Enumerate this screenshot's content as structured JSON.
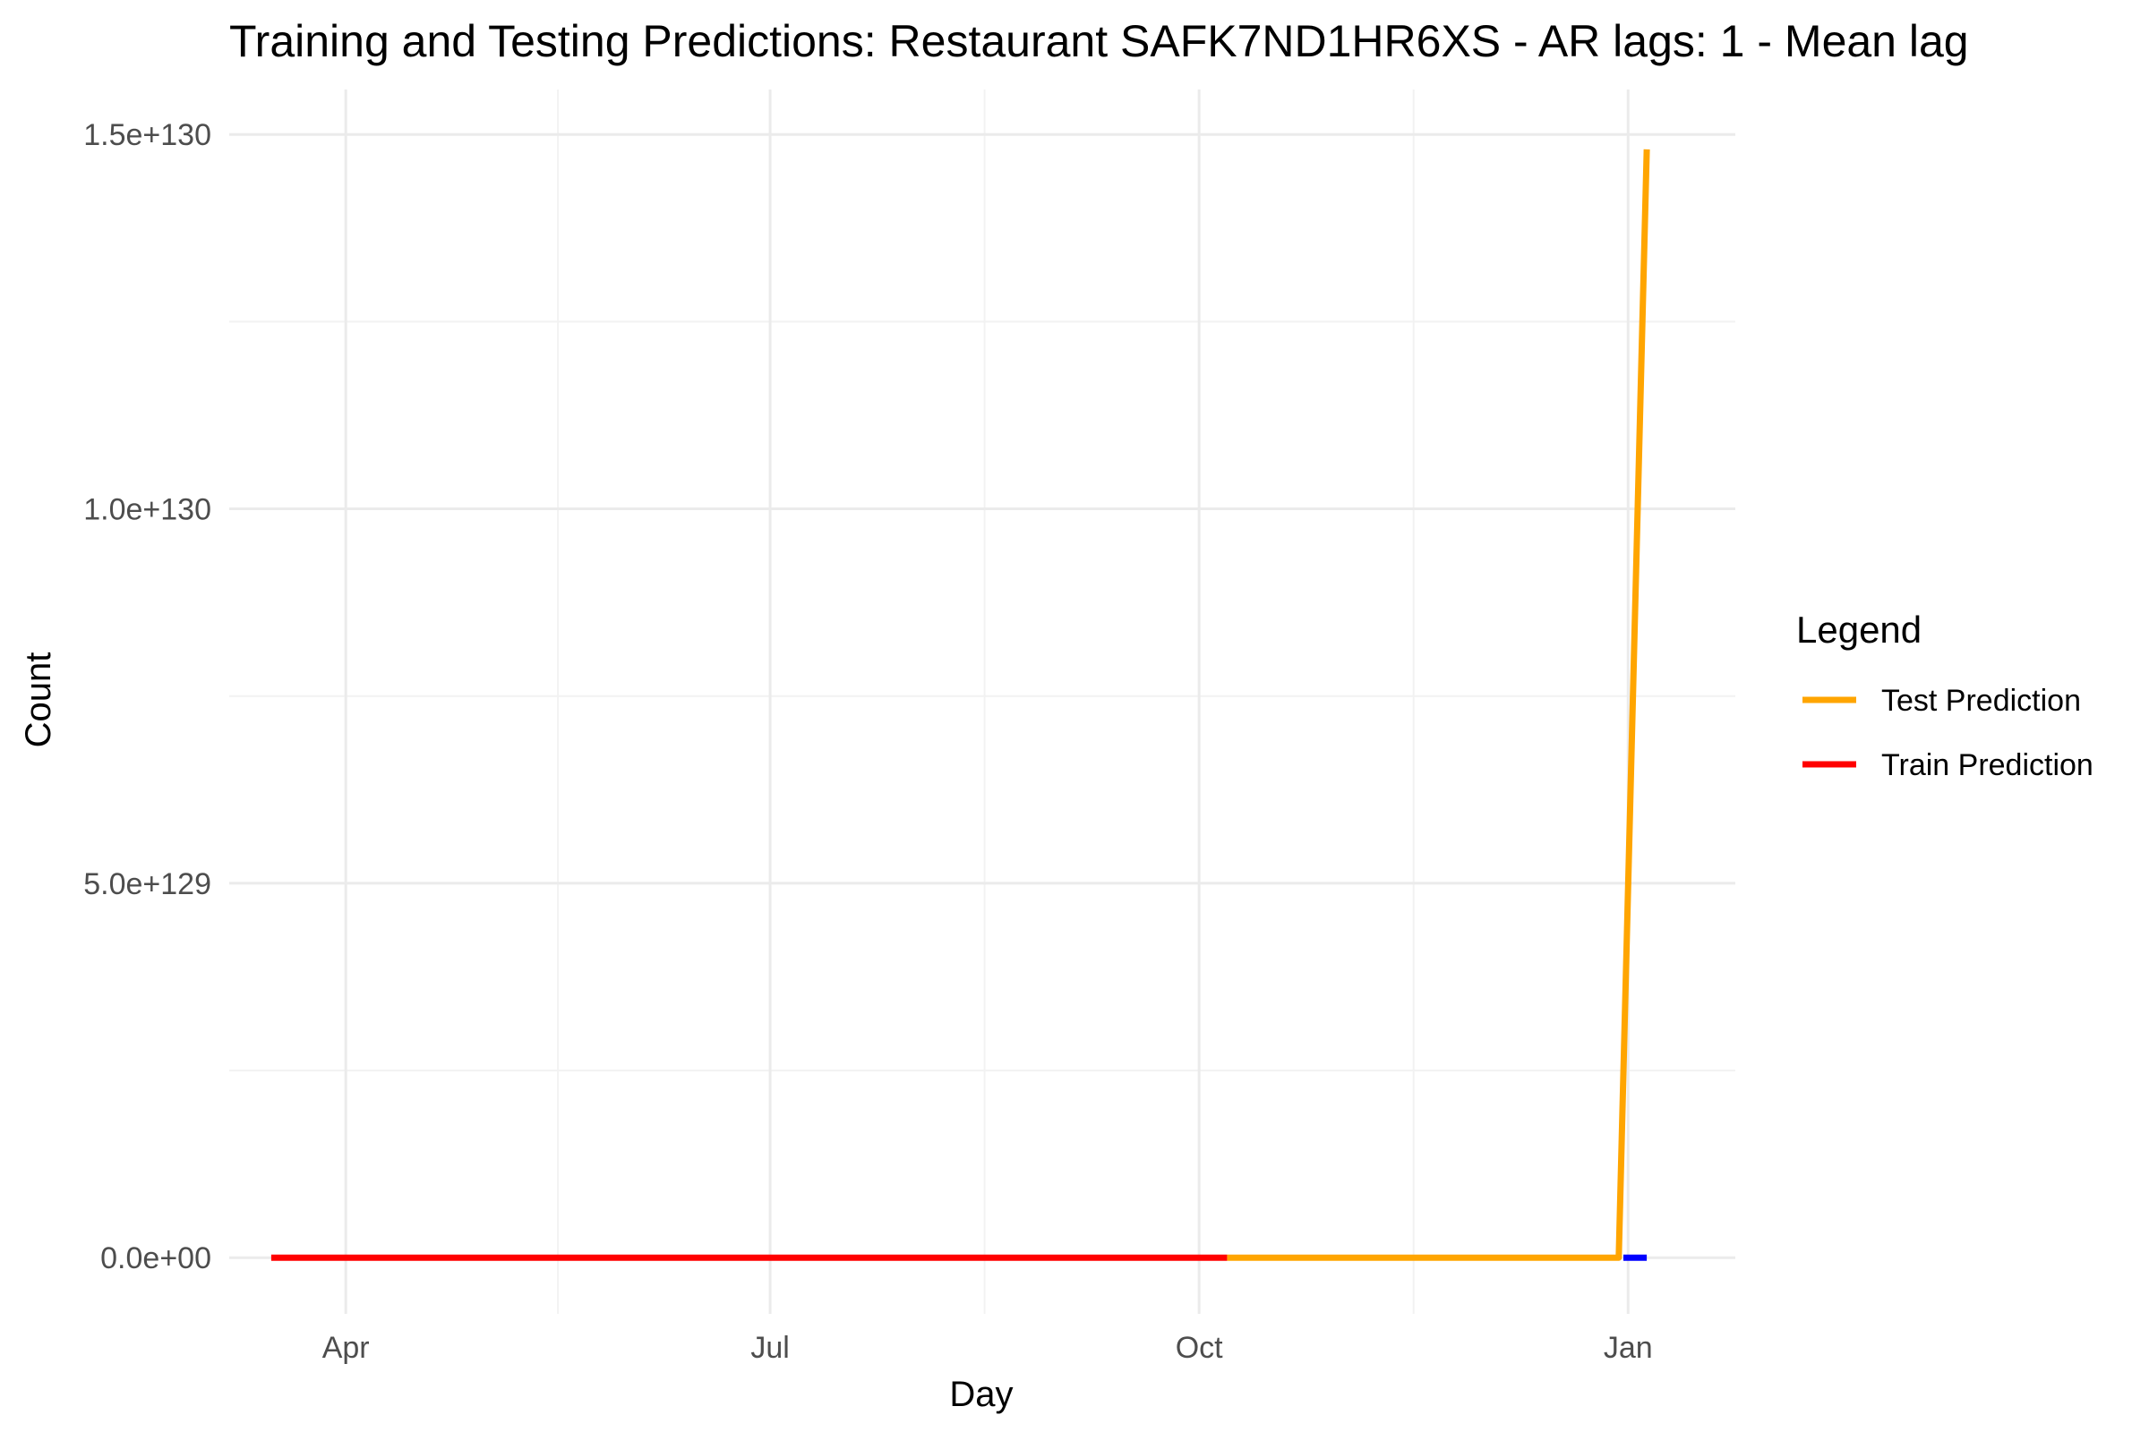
{
  "chart_data": {
    "type": "line",
    "title": "Training and Testing Predictions: Restaurant SAFK7ND1HR6XS - AR lags: 1 - Mean lag",
    "xlabel": "Day",
    "ylabel": "Count",
    "x_ticks": [
      {
        "label": "Apr",
        "date": "2016-04-01"
      },
      {
        "label": "Jul",
        "date": "2016-07-01"
      },
      {
        "label": "Oct",
        "date": "2016-10-01"
      },
      {
        "label": "Jan",
        "date": "2017-01-01"
      }
    ],
    "y_ticks": [
      {
        "label": "0.0e+00",
        "value": 0
      },
      {
        "label": "5.0e+129",
        "value": 5e+129
      },
      {
        "label": "1.0e+130",
        "value": 1e+130
      },
      {
        "label": "1.5e+130",
        "value": 1.5e+130
      }
    ],
    "xlim": [
      "2016-03-07",
      "2017-01-24"
    ],
    "ylim": [
      -7.5e+128,
      1.56e+130
    ],
    "grid": true,
    "legend": {
      "title": "Legend",
      "position": "right"
    },
    "series": [
      {
        "name": "Test Prediction",
        "color": "#FFA500",
        "in_legend": true,
        "points": [
          {
            "x": "2016-10-07",
            "y": 0
          },
          {
            "x": "2016-12-30",
            "y": 0
          },
          {
            "x": "2017-01-05",
            "y": 1.48e+130
          }
        ]
      },
      {
        "name": "Train Prediction",
        "color": "#FF0000",
        "in_legend": true,
        "points": [
          {
            "x": "2016-03-16",
            "y": 0
          },
          {
            "x": "2016-10-07",
            "y": 0
          }
        ]
      },
      {
        "name": "",
        "color": "#0000FF",
        "in_legend": false,
        "points": [
          {
            "x": "2016-12-31",
            "y": 0
          },
          {
            "x": "2017-01-05",
            "y": 0
          }
        ]
      }
    ]
  }
}
